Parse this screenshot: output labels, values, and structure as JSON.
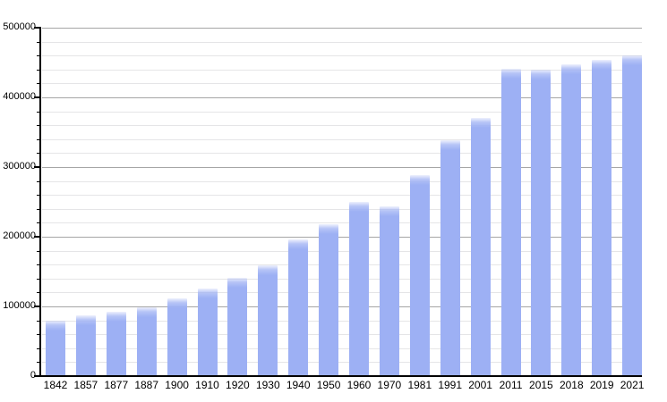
{
  "chart_data": {
    "type": "bar",
    "title": "",
    "xlabel": "",
    "ylabel": "",
    "categories": [
      "1842",
      "1857",
      "1877",
      "1887",
      "1900",
      "1910",
      "1920",
      "1930",
      "1940",
      "1950",
      "1960",
      "1970",
      "1981",
      "1991",
      "2001",
      "2011",
      "2015",
      "2018",
      "2019",
      "2021"
    ],
    "values": [
      79758,
      87803,
      91805,
      98538,
      111539,
      125057,
      141175,
      158724,
      195948,
      218375,
      249738,
      243759,
      288631,
      338250,
      370745,
      441354,
      439712,
      447182,
      453258,
      460349
    ],
    "ylim": [
      0,
      500000
    ],
    "y_major_step": 100000,
    "y_minor_step": 20000,
    "y_tick_labels": [
      "0",
      "100000",
      "200000",
      "300000",
      "400000",
      "500000"
    ],
    "grid": "horizontal, major and minor, on",
    "legend": "none",
    "colors": {
      "bar": "#9db0f4",
      "bar_top_fade": "#eef2fd",
      "major_grid": "#a6a6a6",
      "minor_grid": "#e5e5e7",
      "axis": "#000000",
      "label_text": "#000000",
      "background": "#ffffff"
    }
  }
}
